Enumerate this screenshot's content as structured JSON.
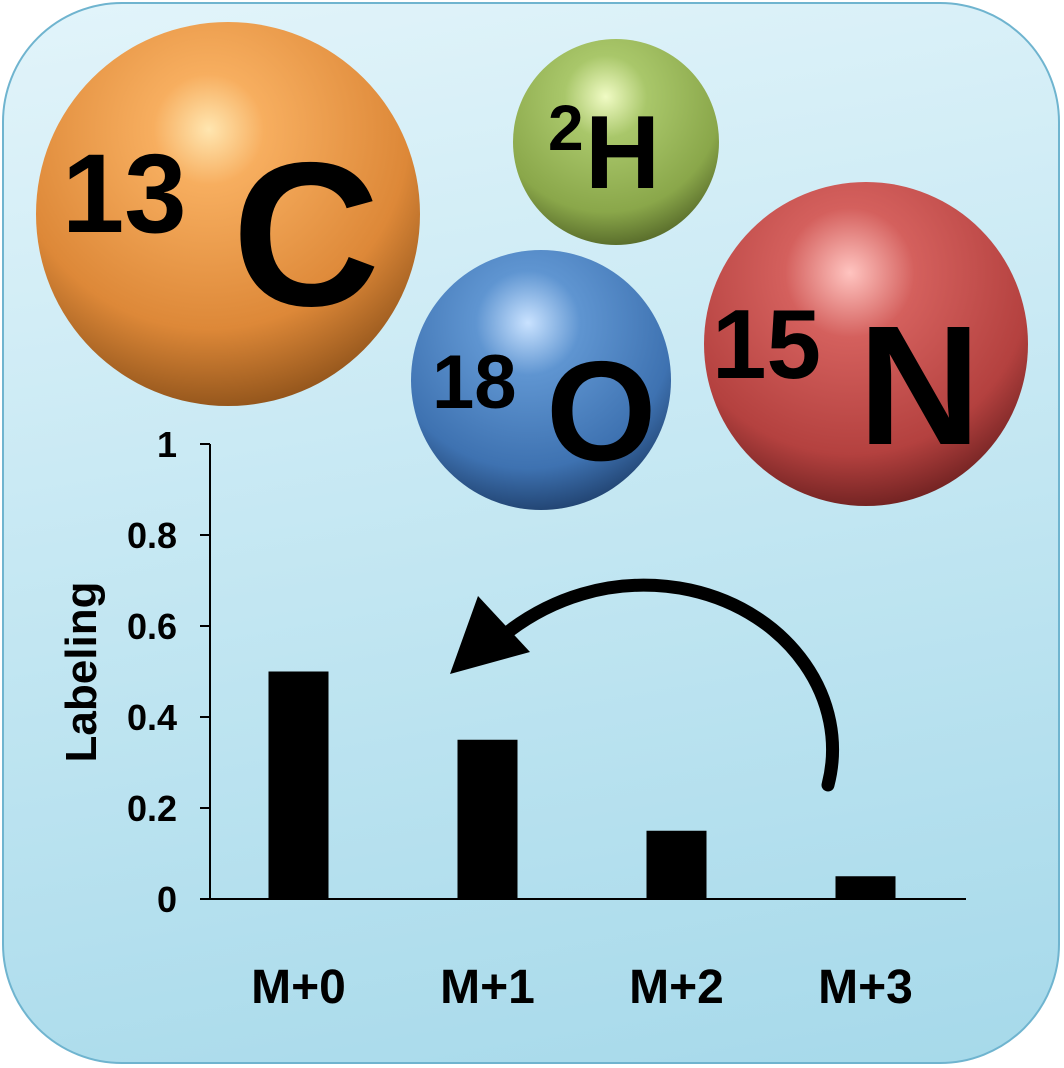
{
  "isotopes": [
    {
      "mass": "13",
      "symbol": "C",
      "color": "#e8923e"
    },
    {
      "mass": "2",
      "symbol": "H",
      "color": "#9ab85a"
    },
    {
      "mass": "18",
      "symbol": "O",
      "color": "#4f86c4"
    },
    {
      "mass": "15",
      "symbol": "N",
      "color": "#c6504f"
    }
  ],
  "chart_data": {
    "type": "bar",
    "categories": [
      "M+0",
      "M+1",
      "M+2",
      "M+3"
    ],
    "values": [
      0.5,
      0.35,
      0.15,
      0.05
    ],
    "ylabel": "Labeling",
    "ylim": [
      0,
      1
    ],
    "yticks": [
      "0",
      "0.2",
      "0.4",
      "0.6",
      "0.8",
      "1"
    ],
    "bar_color": "#000000",
    "annotation": "curved arrow from M+3 to M+1"
  }
}
